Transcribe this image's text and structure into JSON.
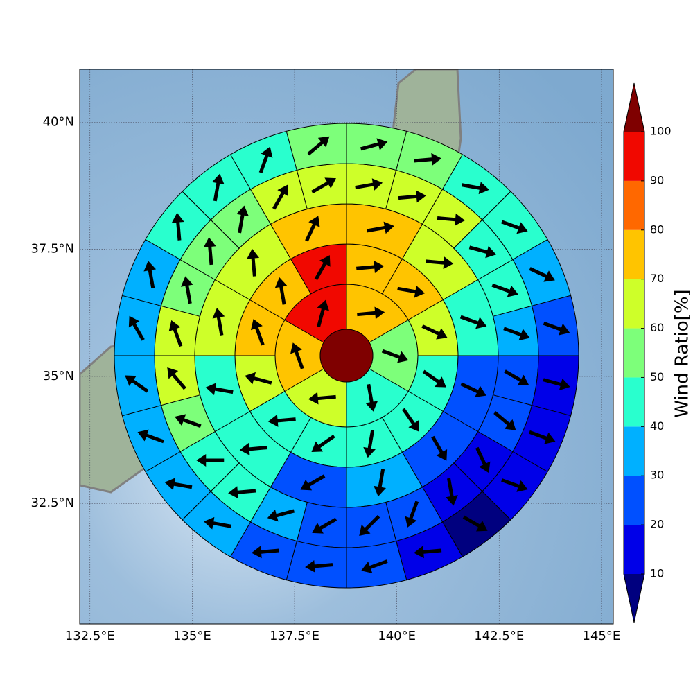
{
  "chart_data": {
    "type": "polar_sector_map",
    "xlim": [
      132.25,
      145.29
    ],
    "ylim": [
      30.13,
      41.04
    ],
    "xticks": [
      {
        "value": 132.5,
        "label": "132.5°E"
      },
      {
        "value": 135,
        "label": "135°E"
      },
      {
        "value": 137.5,
        "label": "137.5°E"
      },
      {
        "value": 140,
        "label": "140°E"
      },
      {
        "value": 142.5,
        "label": "142.5°E"
      },
      {
        "value": 145,
        "label": "145°E"
      }
    ],
    "yticks": [
      {
        "value": 32.5,
        "label": "32.5°N"
      },
      {
        "value": 35,
        "label": "35°N"
      },
      {
        "value": 37.5,
        "label": "37.5°N"
      },
      {
        "value": 40,
        "label": "40°N"
      }
    ],
    "grid": true,
    "center_value": 105,
    "rings": [
      {
        "values": [
          75,
          55,
          45,
          65,
          75,
          95
        ],
        "directions": [
          85,
          110,
          170,
          265,
          340,
          15
        ]
      },
      {
        "values": [
          75,
          75,
          65,
          45,
          45,
          45,
          45,
          45,
          65,
          75,
          75,
          95
        ],
        "directions": [
          85,
          100,
          115,
          125,
          145,
          190,
          235,
          265,
          285,
          340,
          350,
          30
        ]
      },
      {
        "values": [
          75,
          65,
          45,
          25,
          25,
          35,
          25,
          45,
          45,
          65,
          65,
          75
        ],
        "directions": [
          80,
          95,
          110,
          115,
          150,
          190,
          240,
          265,
          280,
          350,
          355,
          25
        ]
      },
      {
        "values": [
          65,
          65,
          65,
          45,
          45,
          35,
          25,
          25,
          15,
          15,
          25,
          25,
          25,
          35,
          45,
          45,
          55,
          65,
          65,
          55,
          55,
          55,
          65,
          65
        ],
        "directions": [
          80,
          85,
          95,
          105,
          110,
          110,
          120,
          130,
          155,
          170,
          200,
          225,
          240,
          255,
          265,
          270,
          290,
          320,
          340,
          350,
          355,
          10,
          30,
          60
        ]
      },
      {
        "values": [
          55,
          55,
          45,
          45,
          35,
          25,
          15,
          15,
          15,
          5,
          15,
          25,
          25,
          25,
          35,
          35,
          35,
          35,
          35,
          35,
          45,
          45,
          45,
          55
        ],
        "directions": [
          75,
          85,
          100,
          110,
          115,
          110,
          105,
          110,
          110,
          120,
          265,
          250,
          265,
          265,
          280,
          280,
          290,
          305,
          330,
          350,
          355,
          10,
          20,
          50
        ]
      }
    ],
    "colorbar": {
      "label": "Wind Ratio[%]",
      "ticks": [
        10,
        20,
        30,
        40,
        50,
        60,
        70,
        80,
        90,
        100
      ],
      "colors": [
        "#00007f",
        "#0000e8",
        "#0050ff",
        "#00b0ff",
        "#29ffce",
        "#7dff7a",
        "#ceff29",
        "#ffc400",
        "#ff6800",
        "#f10800",
        "#7f0000"
      ]
    }
  }
}
